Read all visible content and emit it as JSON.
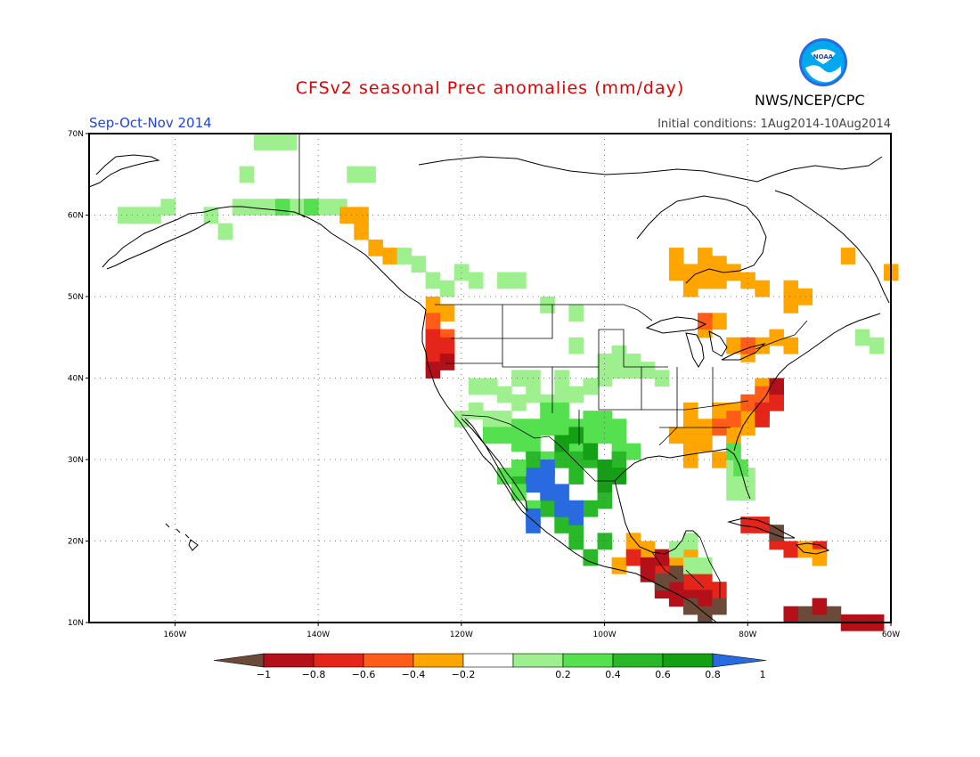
{
  "header": {
    "title": "CFSv2 seasonal Prec anomalies (mm/day)",
    "season": "Sep-Oct-Nov 2014",
    "initial_conditions": "Initial conditions: 1Aug2014-10Aug2014",
    "agency": "NWS/NCEP/CPC",
    "logo_text": "NOAA"
  },
  "map": {
    "lon_range": [
      -172,
      -60
    ],
    "lat_range": [
      10,
      70
    ],
    "lon_ticks": [
      {
        "value": -160,
        "label": "160W"
      },
      {
        "value": -140,
        "label": "140W"
      },
      {
        "value": -120,
        "label": "120W"
      },
      {
        "value": -100,
        "label": "100W"
      },
      {
        "value": -80,
        "label": "80W"
      },
      {
        "value": -60,
        "label": "60W"
      }
    ],
    "lat_ticks": [
      {
        "value": 10,
        "label": "10N"
      },
      {
        "value": 20,
        "label": "20N"
      },
      {
        "value": 30,
        "label": "30N"
      },
      {
        "value": 40,
        "label": "40N"
      },
      {
        "value": 50,
        "label": "50N"
      },
      {
        "value": 60,
        "label": "60N"
      },
      {
        "value": 70,
        "label": "70N"
      }
    ],
    "grid": "dotted",
    "colors": {
      "-1": "#6b4a3a",
      "-0.8": "#b3101a",
      "-0.6": "#e4261a",
      "-0.4": "#ff5c1a",
      "-0.2": "#ffa500",
      "0.2": "#9ef08f",
      "0.4": "#55e050",
      "0.6": "#28b828",
      "0.8": "#14a014",
      "1": "#2a6ae0"
    },
    "regions": [
      {
        "name": "alaska-north-slope-wet",
        "class": "0.2",
        "cells": [
          [
            -148,
            69
          ],
          [
            -146,
            69
          ],
          [
            -144,
            69
          ]
        ]
      },
      {
        "name": "alaska-south-wet",
        "class": "0.2",
        "cells": [
          [
            -167,
            60
          ],
          [
            -165,
            60
          ],
          [
            -163,
            60
          ],
          [
            -161,
            61
          ],
          [
            -155,
            60
          ],
          [
            -151,
            61
          ],
          [
            -149,
            61
          ],
          [
            -147,
            61
          ],
          [
            -145,
            61
          ],
          [
            -143,
            61
          ],
          [
            -141,
            61
          ],
          [
            -139,
            61
          ],
          [
            -137,
            61
          ],
          [
            -153,
            58
          ]
        ]
      },
      {
        "name": "alaska-south-wet-2",
        "class": "0.4",
        "cells": [
          [
            -145,
            61
          ],
          [
            -141,
            61
          ]
        ]
      },
      {
        "name": "yukon-north-wet",
        "class": "0.2",
        "cells": [
          [
            -135,
            65
          ],
          [
            -133,
            65
          ],
          [
            -150,
            65
          ]
        ]
      },
      {
        "name": "bc-coast-dry",
        "class": "-0.2",
        "cells": [
          [
            -136,
            60
          ],
          [
            -134,
            60
          ],
          [
            -134,
            58
          ],
          [
            -132,
            56
          ],
          [
            -130,
            55
          ],
          [
            -124,
            49
          ],
          [
            -122,
            48
          ]
        ]
      },
      {
        "name": "bc-interior-wet",
        "class": "0.2",
        "cells": [
          [
            -128,
            55
          ],
          [
            -126,
            54
          ],
          [
            -124,
            52
          ],
          [
            -122,
            51
          ],
          [
            -120,
            53
          ],
          [
            -118,
            52
          ],
          [
            -114,
            52
          ],
          [
            -112,
            52
          ],
          [
            -108,
            49
          ],
          [
            -104,
            48
          ]
        ]
      },
      {
        "name": "pacific-nw-coast-dry",
        "class": "-0.4",
        "cells": [
          [
            -124,
            47
          ],
          [
            -124,
            46
          ],
          [
            -124,
            42
          ],
          [
            -122,
            45
          ]
        ]
      },
      {
        "name": "pacific-nw-coast-very-dry",
        "class": "-0.6",
        "cells": [
          [
            -124,
            45
          ],
          [
            -124,
            44
          ],
          [
            -124,
            43
          ],
          [
            -122,
            44
          ],
          [
            -122,
            43
          ]
        ]
      },
      {
        "name": "pacific-nw-coast-red",
        "class": "-0.8",
        "cells": [
          [
            -122,
            42
          ],
          [
            -124,
            41
          ]
        ]
      },
      {
        "name": "great-basin-wet",
        "class": "0.2",
        "cells": [
          [
            -118,
            39
          ],
          [
            -116,
            39
          ],
          [
            -114,
            38
          ],
          [
            -112,
            37
          ],
          [
            -110,
            38
          ],
          [
            -108,
            37
          ],
          [
            -106,
            38
          ],
          [
            -104,
            38
          ],
          [
            -102,
            39
          ],
          [
            -100,
            40
          ],
          [
            -98,
            41
          ],
          [
            -96,
            41
          ],
          [
            -94,
            41
          ],
          [
            -92,
            40
          ],
          [
            -104,
            44
          ],
          [
            -120,
            35
          ],
          [
            -118,
            36
          ],
          [
            -116,
            35
          ],
          [
            -114,
            35
          ],
          [
            -112,
            40
          ],
          [
            -110,
            40
          ],
          [
            -106,
            40
          ],
          [
            -100,
            42
          ],
          [
            -98,
            43
          ],
          [
            -96,
            42
          ]
        ]
      },
      {
        "name": "southwest-wet",
        "class": "0.4",
        "cells": [
          [
            -114,
            33
          ],
          [
            -112,
            34
          ],
          [
            -110,
            34
          ],
          [
            -108,
            34
          ],
          [
            -106,
            34
          ],
          [
            -104,
            34
          ],
          [
            -102,
            35
          ],
          [
            -100,
            35
          ],
          [
            -98,
            34
          ],
          [
            -112,
            32
          ],
          [
            -110,
            32
          ],
          [
            -108,
            30
          ],
          [
            -104,
            32
          ],
          [
            -102,
            33
          ],
          [
            -100,
            33
          ],
          [
            -98,
            32
          ],
          [
            -96,
            31
          ],
          [
            -116,
            33
          ],
          [
            -106,
            36
          ],
          [
            -108,
            36
          ]
        ]
      },
      {
        "name": "mexico-wet",
        "class": "0.6",
        "cells": [
          [
            -110,
            30
          ],
          [
            -106,
            30
          ],
          [
            -104,
            30
          ],
          [
            -102,
            30
          ],
          [
            -104,
            28
          ],
          [
            -100,
            28
          ],
          [
            -98,
            30
          ],
          [
            -112,
            28
          ],
          [
            -108,
            24
          ],
          [
            -102,
            24
          ],
          [
            -100,
            25
          ],
          [
            -104,
            22
          ],
          [
            -106,
            22
          ],
          [
            -104,
            20
          ],
          [
            -102,
            18
          ],
          [
            -100,
            20
          ]
        ]
      },
      {
        "name": "sierra-madre-very-wet",
        "class": "1",
        "cells": [
          [
            -110,
            28
          ],
          [
            -108,
            28
          ],
          [
            -108,
            26
          ],
          [
            -106,
            26
          ],
          [
            -106,
            24
          ],
          [
            -104,
            24
          ],
          [
            -110,
            27
          ],
          [
            -108,
            29
          ],
          [
            -104,
            23
          ],
          [
            -110,
            22
          ]
        ]
      },
      {
        "name": "texas-green",
        "class": "0.8",
        "cells": [
          [
            -106,
            32
          ],
          [
            -104,
            33
          ],
          [
            -102,
            31
          ],
          [
            -100,
            27
          ],
          [
            -100,
            29
          ],
          [
            -98,
            28
          ]
        ]
      },
      {
        "name": "southeast-dry",
        "class": "-0.2",
        "cells": [
          [
            -88,
            36
          ],
          [
            -88,
            34
          ],
          [
            -86,
            34
          ],
          [
            -86,
            32
          ],
          [
            -88,
            30
          ],
          [
            -84,
            30
          ],
          [
            -82,
            32
          ],
          [
            -82,
            34
          ],
          [
            -80,
            34
          ],
          [
            -80,
            36
          ],
          [
            -78,
            37
          ],
          [
            -78,
            39
          ],
          [
            -82,
            36
          ],
          [
            -84,
            36
          ],
          [
            -90,
            33
          ],
          [
            -88,
            32
          ]
        ]
      },
      {
        "name": "carolinas-very-dry",
        "class": "-0.4",
        "cells": [
          [
            -80,
            37
          ],
          [
            -78,
            38
          ],
          [
            -82,
            35
          ],
          [
            -84,
            34
          ]
        ]
      },
      {
        "name": "mid-atlantic-red",
        "class": "-0.6",
        "cells": [
          [
            -78,
            36
          ],
          [
            -76,
            38
          ],
          [
            -76,
            37
          ],
          [
            -78,
            35
          ]
        ]
      },
      {
        "name": "mid-atlantic-dark-red",
        "class": "-0.8",
        "cells": [
          [
            -76,
            39
          ]
        ]
      },
      {
        "name": "florida-wet",
        "class": "0.2",
        "cells": [
          [
            -82,
            30
          ],
          [
            -82,
            28
          ],
          [
            -80,
            28
          ],
          [
            -80,
            26
          ],
          [
            -82,
            26
          ]
        ]
      },
      {
        "name": "florida-wet-2",
        "class": "0.4",
        "cells": [
          [
            -82,
            31
          ],
          [
            -81,
            29
          ]
        ]
      },
      {
        "name": "hudson-dry",
        "class": "-0.2",
        "cells": [
          [
            -90,
            53
          ],
          [
            -88,
            53
          ],
          [
            -86,
            54
          ],
          [
            -84,
            54
          ],
          [
            -82,
            53
          ],
          [
            -80,
            52
          ],
          [
            -78,
            51
          ],
          [
            -84,
            52
          ],
          [
            -86,
            52
          ],
          [
            -88,
            51
          ],
          [
            -90,
            55
          ],
          [
            -86,
            55
          ],
          [
            -74,
            51
          ],
          [
            -72,
            50
          ],
          [
            -74,
            49
          ],
          [
            -66,
            55
          ],
          [
            -60,
            53
          ],
          [
            -86,
            46
          ],
          [
            -82,
            44
          ],
          [
            -80,
            43
          ],
          [
            -78,
            44
          ],
          [
            -76,
            45
          ],
          [
            -74,
            44
          ],
          [
            -84,
            47
          ]
        ]
      },
      {
        "name": "great-lakes-red",
        "class": "-0.4",
        "cells": [
          [
            -86,
            47
          ],
          [
            -80,
            44
          ]
        ]
      },
      {
        "name": "east-canada-wet",
        "class": "0.2",
        "cells": [
          [
            -64,
            45
          ],
          [
            -62,
            44
          ]
        ]
      },
      {
        "name": "mexico-south-dry",
        "class": "-0.2",
        "cells": [
          [
            -96,
            20
          ],
          [
            -94,
            18
          ],
          [
            -98,
            17
          ],
          [
            -94,
            19
          ],
          [
            -92,
            17
          ],
          [
            -90,
            16
          ],
          [
            -88,
            14
          ],
          [
            -86,
            14
          ],
          [
            -86,
            12
          ],
          [
            -88,
            19
          ],
          [
            -90,
            17
          ]
        ]
      },
      {
        "name": "central-america-red",
        "class": "-0.6",
        "cells": [
          [
            -96,
            18
          ],
          [
            -92,
            16
          ],
          [
            -90,
            15
          ],
          [
            -88,
            15
          ],
          [
            -86,
            15
          ],
          [
            -84,
            14
          ]
        ]
      },
      {
        "name": "central-america-dark-red",
        "class": "-0.8",
        "cells": [
          [
            -94,
            17
          ],
          [
            -92,
            18
          ],
          [
            -92,
            14
          ],
          [
            -90,
            14
          ],
          [
            -90,
            13
          ],
          [
            -88,
            13
          ],
          [
            -86,
            13
          ],
          [
            -94,
            16
          ]
        ]
      },
      {
        "name": "central-america-brown",
        "class": "-1",
        "cells": [
          [
            -92,
            15
          ],
          [
            -90,
            16
          ],
          [
            -88,
            12
          ],
          [
            -86,
            11
          ],
          [
            -84,
            12
          ]
        ]
      },
      {
        "name": "yucatan-wet",
        "class": "0.2",
        "cells": [
          [
            -90,
            19
          ],
          [
            -88,
            20
          ],
          [
            -88,
            17
          ],
          [
            -86,
            17
          ]
        ]
      },
      {
        "name": "caribbean-red",
        "class": "-0.6",
        "cells": [
          [
            -80,
            22
          ],
          [
            -78,
            22
          ],
          [
            -76,
            20
          ],
          [
            -74,
            19
          ],
          [
            -70,
            19
          ]
        ]
      },
      {
        "name": "caribbean-dark",
        "class": "-1",
        "cells": [
          [
            -76,
            21
          ],
          [
            -72,
            11
          ],
          [
            -70,
            11
          ],
          [
            -68,
            11
          ]
        ]
      },
      {
        "name": "venezuela-red",
        "class": "-0.8",
        "cells": [
          [
            -74,
            11
          ],
          [
            -66,
            10
          ],
          [
            -64,
            10
          ],
          [
            -62,
            10
          ],
          [
            -70,
            12
          ]
        ]
      },
      {
        "name": "caribbean-dry",
        "class": "-0.2",
        "cells": [
          [
            -72,
            19
          ],
          [
            -70,
            18
          ]
        ]
      },
      {
        "name": "baja-wet",
        "class": "0.4",
        "cells": [
          [
            -114,
            28
          ],
          [
            -112,
            26
          ],
          [
            -110,
            24
          ],
          [
            -112,
            29
          ]
        ]
      },
      {
        "name": "baja-blue",
        "class": "1",
        "cells": [
          [
            -110,
            23
          ]
        ]
      }
    ]
  },
  "colorbar": {
    "labels": [
      "-1",
      "-0.8",
      "-0.6",
      "-0.4",
      "-0.2",
      "0.2",
      "0.4",
      "0.6",
      "0.8",
      "1"
    ],
    "colors": [
      "#6b4a3a",
      "#b3101a",
      "#e4261a",
      "#ff5c1a",
      "#ffa500",
      "#ffffff",
      "#9ef08f",
      "#55e050",
      "#28b828",
      "#14a014",
      "#2a6ae0"
    ]
  }
}
